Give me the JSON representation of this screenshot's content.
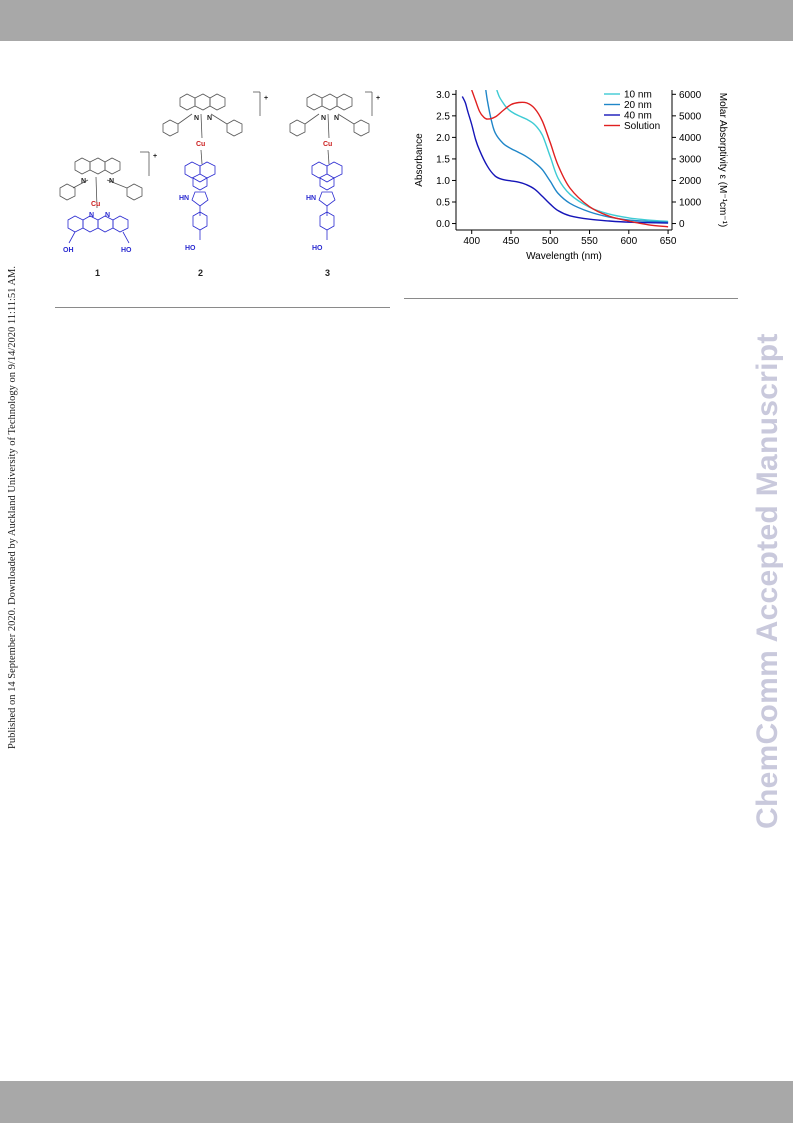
{
  "side_note": "Published on 14 September 2020. Downloaded by Auckland University of Technology on 9/14/2020 11:11:51 AM.",
  "watermark": "ChemComm Accepted Manuscript",
  "structures": {
    "labels": [
      "1",
      "2",
      "3"
    ],
    "metal": "Cu",
    "charge": "+",
    "atoms": {
      "n": "N",
      "oh": "OH",
      "ho": "HO",
      "hn": "HN",
      "o": "O"
    }
  },
  "chart_data": {
    "type": "line",
    "xlabel": "Wavelength (nm)",
    "ylabel": "Absorbance",
    "y2label": "Molar Absorptivity ε (M⁻¹cm⁻¹)",
    "xlim": [
      380,
      655
    ],
    "ylim": [
      -0.15,
      3.1
    ],
    "y2lim": [
      -300,
      6200
    ],
    "x_ticks": [
      400,
      450,
      500,
      550,
      600,
      650
    ],
    "y_ticks": [
      0.0,
      0.5,
      1.0,
      1.5,
      2.0,
      2.5,
      3.0
    ],
    "y_tick_labels": [
      "0.0",
      "0.5",
      "1.0",
      "1.5",
      "2.0",
      "2.5",
      "3.0"
    ],
    "y2_ticks": [
      0,
      1000,
      2000,
      3000,
      4000,
      5000,
      6000
    ],
    "legend_position": "top-right",
    "series": [
      {
        "name": "10 nm",
        "color": "#3ecbd4",
        "axis": "left",
        "x": [
          432,
          435,
          440,
          445,
          450,
          460,
          470,
          480,
          490,
          500,
          510,
          525,
          550,
          575,
          600,
          625,
          650
        ],
        "y": [
          3.1,
          2.95,
          2.8,
          2.68,
          2.6,
          2.5,
          2.42,
          2.3,
          2.05,
          1.55,
          1.05,
          0.68,
          0.38,
          0.22,
          0.13,
          0.08,
          0.05
        ]
      },
      {
        "name": "20 nm",
        "color": "#1f86c8",
        "axis": "left",
        "x": [
          418,
          420,
          425,
          430,
          440,
          450,
          460,
          470,
          480,
          490,
          500,
          510,
          525,
          550,
          575,
          600,
          625,
          650
        ],
        "y": [
          3.1,
          2.85,
          2.4,
          2.1,
          1.86,
          1.74,
          1.65,
          1.55,
          1.42,
          1.25,
          0.98,
          0.7,
          0.47,
          0.27,
          0.15,
          0.08,
          0.05,
          0.03
        ]
      },
      {
        "name": "40 nm",
        "color": "#1515b8",
        "axis": "left",
        "x": [
          388,
          392,
          395,
          400,
          405,
          410,
          420,
          430,
          440,
          450,
          460,
          470,
          480,
          490,
          500,
          510,
          525,
          550,
          575,
          600,
          625,
          650
        ],
        "y": [
          2.95,
          2.8,
          2.6,
          2.3,
          1.95,
          1.7,
          1.33,
          1.1,
          1.02,
          0.99,
          0.96,
          0.9,
          0.8,
          0.63,
          0.45,
          0.3,
          0.18,
          0.1,
          0.06,
          0.03,
          0.02,
          0.01
        ]
      },
      {
        "name": "Solution",
        "color": "#e02020",
        "axis": "right",
        "x": [
          400,
          405,
          410,
          415,
          420,
          430,
          440,
          450,
          460,
          470,
          480,
          490,
          500,
          510,
          525,
          550,
          575,
          600,
          625,
          650
        ],
        "y": [
          6200,
          5700,
          5200,
          4950,
          4850,
          4950,
          5250,
          5520,
          5620,
          5600,
          5350,
          4750,
          3750,
          2700,
          1650,
          780,
          340,
          120,
          -60,
          -150
        ]
      }
    ]
  }
}
